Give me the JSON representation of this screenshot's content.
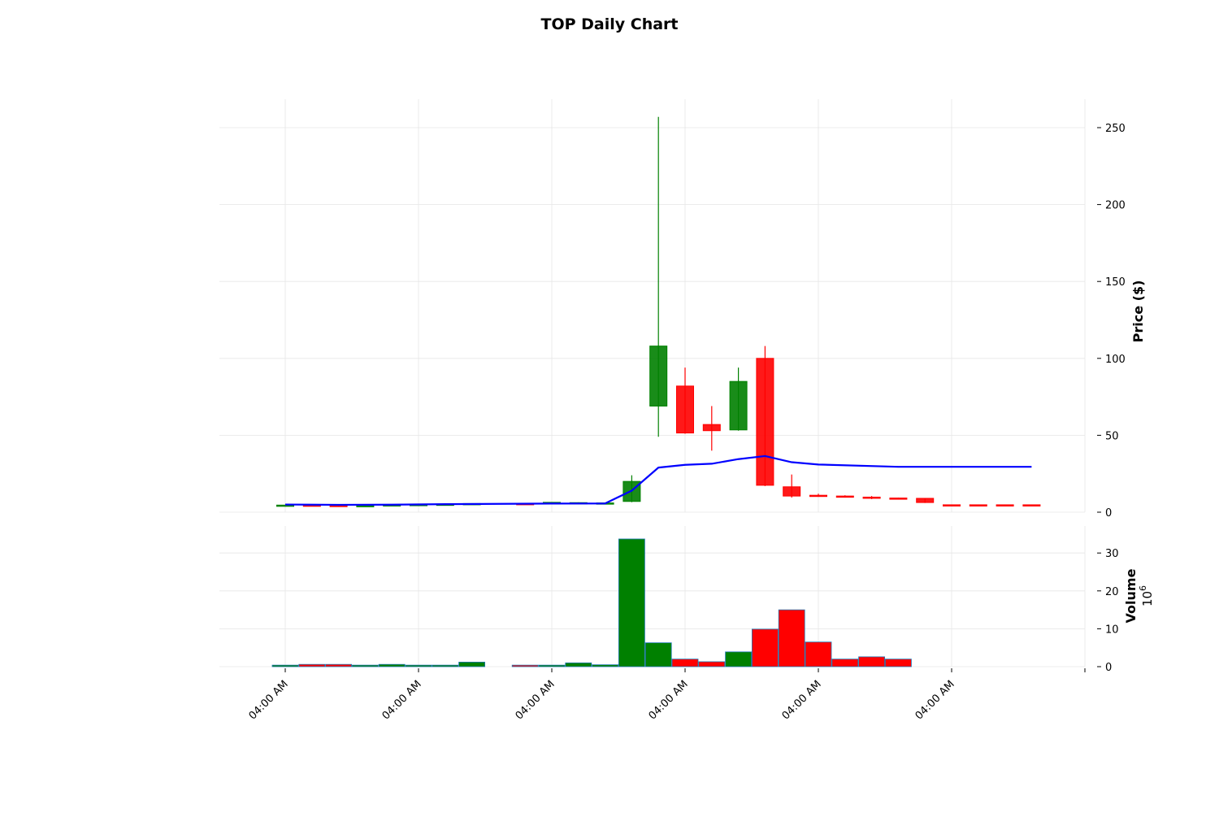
{
  "chart_data": {
    "type": "candlestick",
    "title": "TOP Daily Chart",
    "x_tick_labels": [
      "04:00 AM",
      "04:00 AM",
      "04:00 AM",
      "04:00 AM",
      "04:00 AM",
      "04:00 AM"
    ],
    "price_panel": {
      "ylabel": "Price ($)",
      "ylim": [
        0,
        268
      ],
      "yticks": [
        0,
        50,
        100,
        150,
        200,
        250
      ],
      "candles": [
        {
          "slot": 0,
          "open": 4.3,
          "high": 4.8,
          "low": 4.1,
          "close": 4.6,
          "dir": "up"
        },
        {
          "slot": 1,
          "open": 4.6,
          "high": 4.8,
          "low": 4.2,
          "close": 4.4,
          "dir": "down"
        },
        {
          "slot": 2,
          "open": 4.4,
          "high": 4.6,
          "low": 3.9,
          "close": 4.0,
          "dir": "down"
        },
        {
          "slot": 3,
          "open": 4.0,
          "high": 4.6,
          "low": 3.8,
          "close": 4.3,
          "dir": "up"
        },
        {
          "slot": 4,
          "open": 4.3,
          "high": 5.0,
          "low": 4.2,
          "close": 4.8,
          "dir": "up"
        },
        {
          "slot": 5,
          "open": 4.8,
          "high": 5.2,
          "low": 4.6,
          "close": 5.0,
          "dir": "up"
        },
        {
          "slot": 6,
          "open": 5.0,
          "high": 5.4,
          "low": 4.8,
          "close": 5.2,
          "dir": "up"
        },
        {
          "slot": 7,
          "open": 5.2,
          "high": 5.8,
          "low": 5.0,
          "close": 5.6,
          "dir": "up"
        },
        {
          "slot": 9,
          "open": 5.6,
          "high": 6.0,
          "low": 5.2,
          "close": 5.4,
          "dir": "down"
        },
        {
          "slot": 10,
          "open": 5.4,
          "high": 6.6,
          "low": 5.3,
          "close": 6.4,
          "dir": "up"
        },
        {
          "slot": 11,
          "open": 6.0,
          "high": 6.4,
          "low": 5.6,
          "close": 6.2,
          "dir": "up"
        },
        {
          "slot": 12,
          "open": 5.8,
          "high": 6.2,
          "low": 5.5,
          "close": 6.0,
          "dir": "up"
        },
        {
          "slot": 13,
          "open": 7.0,
          "high": 24.0,
          "low": 6.5,
          "close": 20.0,
          "dir": "up"
        },
        {
          "slot": 14,
          "open": 69.0,
          "high": 257.0,
          "low": 49.0,
          "close": 108.0,
          "dir": "up"
        },
        {
          "slot": 15,
          "open": 82.0,
          "high": 94.0,
          "low": 51.0,
          "close": 51.5,
          "dir": "down"
        },
        {
          "slot": 16,
          "open": 57.0,
          "high": 69.0,
          "low": 40.0,
          "close": 53.0,
          "dir": "down"
        },
        {
          "slot": 17,
          "open": 53.5,
          "high": 94.0,
          "low": 53.0,
          "close": 85.0,
          "dir": "up"
        },
        {
          "slot": 18,
          "open": 100.0,
          "high": 108.0,
          "low": 17.0,
          "close": 17.5,
          "dir": "down"
        },
        {
          "slot": 19,
          "open": 16.5,
          "high": 24.5,
          "low": 9.5,
          "close": 10.5,
          "dir": "down"
        },
        {
          "slot": 20,
          "open": 11.0,
          "high": 12.0,
          "low": 10.0,
          "close": 10.6,
          "dir": "down"
        },
        {
          "slot": 21,
          "open": 10.5,
          "high": 11.0,
          "low": 9.5,
          "close": 9.8,
          "dir": "down"
        },
        {
          "slot": 22,
          "open": 9.8,
          "high": 10.5,
          "low": 8.5,
          "close": 9.3,
          "dir": "down"
        },
        {
          "slot": 23,
          "open": 9.2,
          "high": 9.5,
          "low": 8.7,
          "close": 9.0,
          "dir": "down"
        },
        {
          "slot": 24,
          "open": 9.0,
          "high": 9.2,
          "low": 6.0,
          "close": 6.3,
          "dir": "down"
        },
        {
          "slot": 25,
          "open": 4.8,
          "high": 5.0,
          "low": 4.6,
          "close": 4.7,
          "dir": "down"
        },
        {
          "slot": 26,
          "open": 4.8,
          "high": 5.0,
          "low": 4.6,
          "close": 4.7,
          "dir": "down"
        },
        {
          "slot": 27,
          "open": 4.8,
          "high": 5.0,
          "low": 4.6,
          "close": 4.7,
          "dir": "down"
        },
        {
          "slot": 28,
          "open": 4.8,
          "high": 5.0,
          "low": 4.6,
          "close": 4.7,
          "dir": "down"
        }
      ],
      "moving_average": {
        "color": "#0000ff",
        "points": [
          [
            0,
            5.0
          ],
          [
            2,
            4.8
          ],
          [
            4,
            4.9
          ],
          [
            6,
            5.2
          ],
          [
            8,
            5.4
          ],
          [
            10,
            5.6
          ],
          [
            12,
            5.7
          ],
          [
            13,
            14.0
          ],
          [
            14,
            29.0
          ],
          [
            15,
            30.8
          ],
          [
            16,
            31.5
          ],
          [
            17,
            34.5
          ],
          [
            18,
            36.5
          ],
          [
            19,
            32.5
          ],
          [
            20,
            31.0
          ],
          [
            23,
            29.5
          ],
          [
            25,
            29.5
          ],
          [
            28,
            29.5
          ]
        ]
      }
    },
    "volume_panel": {
      "ylabel": "Volume",
      "multiplier_label": "10",
      "multiplier_exponent": "6",
      "ylim": [
        0,
        34
      ],
      "yticks": [
        0,
        10,
        20,
        30
      ],
      "bars": [
        {
          "slot": 0,
          "value": 0.4,
          "dir": "up"
        },
        {
          "slot": 1,
          "value": 0.6,
          "dir": "down"
        },
        {
          "slot": 2,
          "value": 0.6,
          "dir": "down"
        },
        {
          "slot": 3,
          "value": 0.4,
          "dir": "up"
        },
        {
          "slot": 4,
          "value": 0.6,
          "dir": "up"
        },
        {
          "slot": 5,
          "value": 0.4,
          "dir": "up"
        },
        {
          "slot": 6,
          "value": 0.4,
          "dir": "up"
        },
        {
          "slot": 7,
          "value": 1.2,
          "dir": "up"
        },
        {
          "slot": 9,
          "value": 0.4,
          "dir": "down"
        },
        {
          "slot": 10,
          "value": 0.4,
          "dir": "up"
        },
        {
          "slot": 11,
          "value": 1.0,
          "dir": "up"
        },
        {
          "slot": 12,
          "value": 0.5,
          "dir": "up"
        },
        {
          "slot": 13,
          "value": 33.7,
          "dir": "up"
        },
        {
          "slot": 14,
          "value": 6.3,
          "dir": "up"
        },
        {
          "slot": 15,
          "value": 2.0,
          "dir": "down"
        },
        {
          "slot": 16,
          "value": 1.3,
          "dir": "down"
        },
        {
          "slot": 17,
          "value": 3.9,
          "dir": "up"
        },
        {
          "slot": 18,
          "value": 9.9,
          "dir": "down"
        },
        {
          "slot": 19,
          "value": 15.0,
          "dir": "down"
        },
        {
          "slot": 20,
          "value": 6.5,
          "dir": "down"
        },
        {
          "slot": 21,
          "value": 2.0,
          "dir": "down"
        },
        {
          "slot": 22,
          "value": 2.6,
          "dir": "down"
        },
        {
          "slot": 23,
          "value": 2.0,
          "dir": "down"
        }
      ]
    },
    "colors": {
      "up": "#008000",
      "down": "#ff0000",
      "ma": "#0000ff",
      "grid": "#e6e6e6"
    }
  }
}
